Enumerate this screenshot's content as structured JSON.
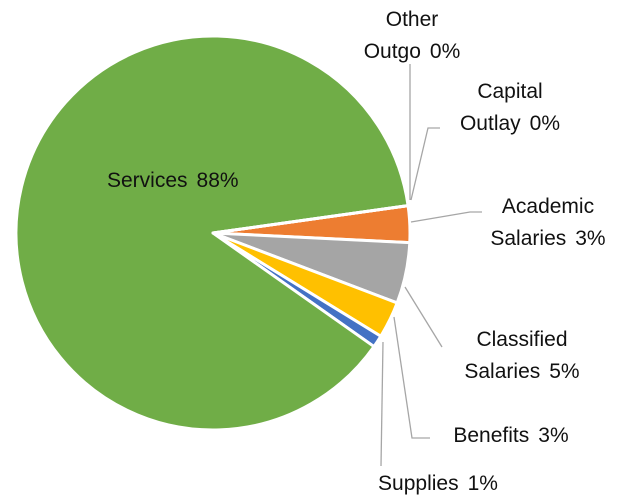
{
  "chart_data": {
    "type": "pie",
    "categories": [
      "Academic Salaries",
      "Classified Salaries",
      "Benefits",
      "Supplies",
      "Services",
      "Capital Outlay",
      "Other Outgo"
    ],
    "values": [
      3,
      5,
      3,
      1,
      88,
      0,
      0
    ],
    "value_labels": [
      "3%",
      "5%",
      "3%",
      "1%",
      "88%",
      "0%",
      "0%"
    ],
    "colors": [
      "#ed7d31",
      "#a5a5a5",
      "#ffc000",
      "#4472c4",
      "#70ad47",
      "#5b9bd5",
      "#264478"
    ]
  }
}
